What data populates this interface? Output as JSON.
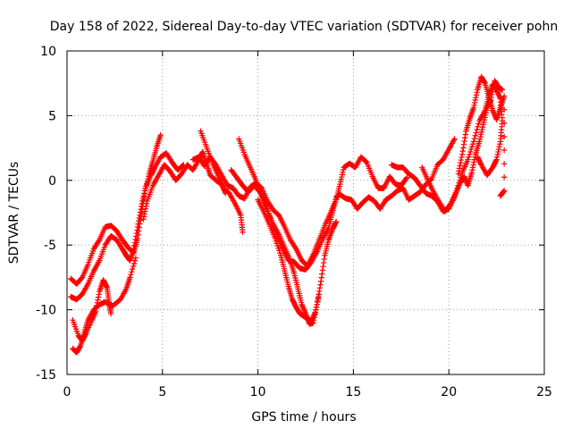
{
  "chart_data": {
    "type": "scatter",
    "title": "Day 158 of 2022, Sidereal Day-to-day VTEC variation (SDTVAR) for receiver pohn",
    "xlabel": "GPS time / hours",
    "ylabel": "SDTVAR / TECUs",
    "xlim": [
      0,
      25
    ],
    "ylim": [
      -15,
      10
    ],
    "xticks": [
      0,
      5,
      10,
      15,
      20,
      25
    ],
    "yticks": [
      -15,
      -10,
      -5,
      0,
      5,
      10
    ],
    "grid": true,
    "marker": "+",
    "color": "#ff0000",
    "series": [
      {
        "points": [
          [
            0.2,
            -7.6
          ],
          [
            0.5,
            -8
          ],
          [
            0.8,
            -7.5
          ],
          [
            1.1,
            -6.5
          ],
          [
            1.4,
            -5.3
          ],
          [
            1.7,
            -4.6
          ],
          [
            2.0,
            -3.6
          ],
          [
            2.3,
            -3.5
          ],
          [
            2.6,
            -3.9
          ],
          [
            2.9,
            -4.6
          ],
          [
            3.2,
            -5.2
          ],
          [
            3.5,
            -5.6
          ],
          [
            3.7,
            -4.5
          ],
          [
            3.9,
            -2.5
          ],
          [
            4.1,
            -0.8
          ],
          [
            4.3,
            0.5
          ],
          [
            4.5,
            1.5
          ],
          [
            4.7,
            2.6
          ],
          [
            4.9,
            3.5
          ]
        ]
      },
      {
        "points": [
          [
            0.2,
            -9
          ],
          [
            0.5,
            -9.2
          ],
          [
            0.8,
            -8.8
          ],
          [
            1.1,
            -8
          ],
          [
            1.4,
            -7
          ],
          [
            1.7,
            -6.2
          ],
          [
            2.0,
            -5
          ],
          [
            2.3,
            -4.3
          ],
          [
            2.6,
            -4.6
          ],
          [
            2.9,
            -5.3
          ],
          [
            3.1,
            -5.8
          ],
          [
            3.3,
            -6.2
          ],
          [
            3.5,
            -5.3
          ],
          [
            3.7,
            -3.6
          ],
          [
            3.9,
            -2
          ],
          [
            4.1,
            -0.6
          ],
          [
            4.4,
            0.4
          ],
          [
            4.6,
            1
          ],
          [
            4.9,
            1.8
          ],
          [
            5.2,
            2.1
          ],
          [
            5.5,
            1.4
          ],
          [
            5.8,
            0.8
          ],
          [
            6.1,
            1.2
          ]
        ]
      },
      {
        "points": [
          [
            0.3,
            -13
          ],
          [
            0.5,
            -13.3
          ],
          [
            0.7,
            -12.8
          ],
          [
            0.9,
            -11.8
          ],
          [
            1.1,
            -10.8
          ],
          [
            1.4,
            -10
          ],
          [
            1.7,
            -9.6
          ],
          [
            2.0,
            -9.4
          ],
          [
            2.4,
            -9.7
          ],
          [
            2.8,
            -9.2
          ],
          [
            3.1,
            -8.4
          ],
          [
            3.3,
            -7.5
          ],
          [
            3.6,
            -6
          ]
        ]
      },
      {
        "points": [
          [
            0.3,
            -10.8
          ],
          [
            0.6,
            -12
          ],
          [
            0.8,
            -12.4
          ],
          [
            1.0,
            -11.8
          ],
          [
            1.3,
            -10.8
          ],
          [
            1.5,
            -10.1
          ],
          [
            1.7,
            -8.6
          ],
          [
            1.9,
            -7.7
          ],
          [
            2.1,
            -8.3
          ],
          [
            2.2,
            -9.4
          ],
          [
            2.3,
            -10.3
          ]
        ]
      },
      {
        "points": [
          [
            4.0,
            -3
          ],
          [
            4.2,
            -1.6
          ],
          [
            4.5,
            -0.4
          ],
          [
            4.8,
            0.4
          ],
          [
            5.1,
            1.2
          ],
          [
            5.4,
            0.7
          ],
          [
            5.7,
            0
          ],
          [
            6.0,
            0.5
          ],
          [
            6.3,
            1.2
          ],
          [
            6.6,
            0.8
          ],
          [
            6.9,
            1.6
          ],
          [
            7.1,
            2.2
          ],
          [
            7.3,
            1.3
          ],
          [
            7.5,
            0.4
          ],
          [
            7.8,
            0
          ],
          [
            8.1,
            -0.3
          ],
          [
            8.3,
            -1
          ]
        ]
      },
      {
        "points": [
          [
            6.6,
            1.6
          ],
          [
            6.9,
            1.8
          ],
          [
            7.2,
            1.1
          ],
          [
            7.5,
            1.8
          ],
          [
            7.8,
            1.2
          ],
          [
            8.1,
            0.4
          ],
          [
            8.4,
            -0.4
          ],
          [
            8.7,
            -0.6
          ],
          [
            9.0,
            -1.2
          ],
          [
            9.3,
            -1.4
          ],
          [
            9.6,
            -0.5
          ],
          [
            9.9,
            -0.2
          ],
          [
            10.2,
            -0.6
          ],
          [
            10.5,
            -1.6
          ],
          [
            10.8,
            -2.3
          ],
          [
            11.1,
            -2.7
          ],
          [
            11.4,
            -3.6
          ],
          [
            11.7,
            -4.6
          ],
          [
            12.0,
            -5.3
          ],
          [
            12.3,
            -6.2
          ],
          [
            12.6,
            -6.6
          ],
          [
            12.9,
            -5.7
          ],
          [
            13.2,
            -4.6
          ],
          [
            13.5,
            -3.5
          ],
          [
            13.8,
            -2.5
          ],
          [
            14.1,
            -1.5
          ],
          [
            14.3,
            -0.3
          ],
          [
            14.5,
            1
          ],
          [
            14.8,
            1.3
          ],
          [
            15.1,
            1
          ],
          [
            15.4,
            1.8
          ],
          [
            15.7,
            1.4
          ],
          [
            16.0,
            0.3
          ],
          [
            16.3,
            -0.6
          ],
          [
            16.6,
            -0.6
          ],
          [
            16.9,
            0.3
          ],
          [
            17.2,
            -0.3
          ],
          [
            17.5,
            -0.4
          ],
          [
            17.8,
            0.2
          ]
        ]
      },
      {
        "points": [
          [
            7.0,
            3.8
          ],
          [
            7.3,
            2.6
          ],
          [
            7.6,
            1.4
          ],
          [
            7.9,
            0.4
          ],
          [
            8.2,
            -0.6
          ],
          [
            8.5,
            -1
          ],
          [
            8.8,
            -1.8
          ],
          [
            9.1,
            -2.7
          ],
          [
            9.2,
            -4
          ]
        ]
      },
      {
        "points": [
          [
            8.6,
            0.8
          ],
          [
            8.9,
            0.2
          ],
          [
            9.2,
            -0.4
          ],
          [
            9.5,
            -0.9
          ],
          [
            9.8,
            -0.4
          ],
          [
            10.1,
            -0.9
          ],
          [
            10.4,
            -1.8
          ],
          [
            10.7,
            -3.1
          ],
          [
            11.0,
            -4.3
          ],
          [
            11.3,
            -5.3
          ],
          [
            11.6,
            -6.2
          ],
          [
            11.9,
            -6.3
          ],
          [
            12.2,
            -6.8
          ],
          [
            12.5,
            -6.9
          ],
          [
            12.8,
            -6.3
          ],
          [
            13.1,
            -5.5
          ],
          [
            13.4,
            -4.5
          ],
          [
            13.7,
            -3.7
          ],
          [
            13.9,
            -2.5
          ],
          [
            14.1,
            -1.3
          ],
          [
            14.3,
            -1.1
          ],
          [
            14.6,
            -1.4
          ],
          [
            14.9,
            -1.5
          ],
          [
            15.2,
            -2.2
          ],
          [
            15.5,
            -1.7
          ],
          [
            15.8,
            -1.3
          ],
          [
            16.1,
            -1.6
          ],
          [
            16.4,
            -2.2
          ],
          [
            16.7,
            -1.5
          ],
          [
            17.0,
            -1.2
          ],
          [
            17.3,
            -0.8
          ],
          [
            17.6,
            -0.6
          ],
          [
            17.9,
            -1.5
          ],
          [
            18.2,
            -1.2
          ],
          [
            18.5,
            -0.9
          ],
          [
            18.8,
            -0.3
          ],
          [
            19.1,
            0.1
          ],
          [
            19.4,
            1.2
          ],
          [
            19.7,
            1.6
          ],
          [
            20.0,
            2.4
          ],
          [
            20.3,
            3.2
          ]
        ]
      },
      {
        "points": [
          [
            9.0,
            3.2
          ],
          [
            9.3,
            2
          ],
          [
            9.6,
            1
          ],
          [
            9.9,
            0
          ],
          [
            10.2,
            -1.2
          ],
          [
            10.5,
            -2.4
          ],
          [
            10.8,
            -3.4
          ],
          [
            11.1,
            -4.2
          ],
          [
            11.4,
            -5.2
          ],
          [
            11.7,
            -6.2
          ],
          [
            11.9,
            -7.2
          ],
          [
            12.1,
            -8.4
          ],
          [
            12.3,
            -9.6
          ],
          [
            12.5,
            -10.3
          ],
          [
            12.7,
            -11.1
          ],
          [
            12.9,
            -11
          ],
          [
            13.1,
            -9.6
          ],
          [
            13.3,
            -7.8
          ],
          [
            13.5,
            -5.8
          ],
          [
            13.7,
            -4.6
          ],
          [
            13.9,
            -3.8
          ],
          [
            14.1,
            -3.2
          ]
        ]
      },
      {
        "points": [
          [
            10.0,
            -1.5
          ],
          [
            10.3,
            -2.4
          ],
          [
            10.6,
            -3.4
          ],
          [
            10.9,
            -4.5
          ],
          [
            11.2,
            -5.8
          ],
          [
            11.4,
            -7
          ],
          [
            11.6,
            -8.2
          ],
          [
            11.8,
            -9.2
          ],
          [
            12.0,
            -9.8
          ],
          [
            12.2,
            -10.3
          ],
          [
            12.5,
            -10.6
          ],
          [
            12.8,
            -10.9
          ],
          [
            13.0,
            -10.2
          ],
          [
            13.2,
            -8.8
          ]
        ]
      },
      {
        "points": [
          [
            17.0,
            1.2
          ],
          [
            17.3,
            1
          ],
          [
            17.6,
            1
          ],
          [
            17.9,
            0.5
          ],
          [
            18.2,
            0.2
          ],
          [
            18.5,
            -0.4
          ],
          [
            18.8,
            -1
          ],
          [
            19.1,
            -1.2
          ],
          [
            19.4,
            -1.6
          ],
          [
            19.7,
            -2.4
          ],
          [
            20.0,
            -2.2
          ],
          [
            20.3,
            -1.3
          ],
          [
            20.6,
            -0.2
          ],
          [
            20.8,
            0.3
          ],
          [
            21.0,
            -0.4
          ],
          [
            21.2,
            0.6
          ],
          [
            21.4,
            2
          ],
          [
            21.6,
            3
          ],
          [
            21.8,
            4.3
          ],
          [
            22.0,
            5.6
          ],
          [
            22.2,
            6.2
          ],
          [
            22.4,
            7.7
          ],
          [
            22.6,
            7.2
          ],
          [
            22.8,
            7
          ]
        ]
      },
      {
        "points": [
          [
            18.6,
            1
          ],
          [
            18.9,
            0
          ],
          [
            19.2,
            -0.9
          ],
          [
            19.5,
            -1.7
          ],
          [
            19.8,
            -2.4
          ],
          [
            20.1,
            -1.8
          ],
          [
            20.4,
            -0.8
          ],
          [
            20.7,
            0.6
          ],
          [
            21.0,
            1.6
          ],
          [
            21.3,
            3
          ],
          [
            21.6,
            4.6
          ],
          [
            21.9,
            5.4
          ],
          [
            22.1,
            6.6
          ],
          [
            22.3,
            7.4
          ],
          [
            22.5,
            7
          ],
          [
            22.7,
            6.3
          ],
          [
            22.8,
            4.6
          ],
          [
            22.7,
            3
          ],
          [
            22.5,
            1.6
          ],
          [
            22.3,
            1
          ],
          [
            22.0,
            0.4
          ],
          [
            21.7,
            1.2
          ],
          [
            21.5,
            1.8
          ]
        ]
      },
      {
        "points": [
          [
            20.5,
            0.5
          ],
          [
            20.7,
            2
          ],
          [
            20.9,
            3.8
          ],
          [
            21.1,
            4.8
          ],
          [
            21.3,
            5.6
          ],
          [
            21.5,
            7
          ],
          [
            21.7,
            8
          ],
          [
            21.9,
            7.5
          ],
          [
            22.1,
            6.4
          ],
          [
            22.3,
            5.4
          ],
          [
            22.5,
            4.7
          ],
          [
            22.7,
            5.6
          ],
          [
            22.9,
            6.5
          ],
          [
            22.9,
            -0.8
          ],
          [
            22.7,
            -1.2
          ]
        ]
      }
    ]
  }
}
